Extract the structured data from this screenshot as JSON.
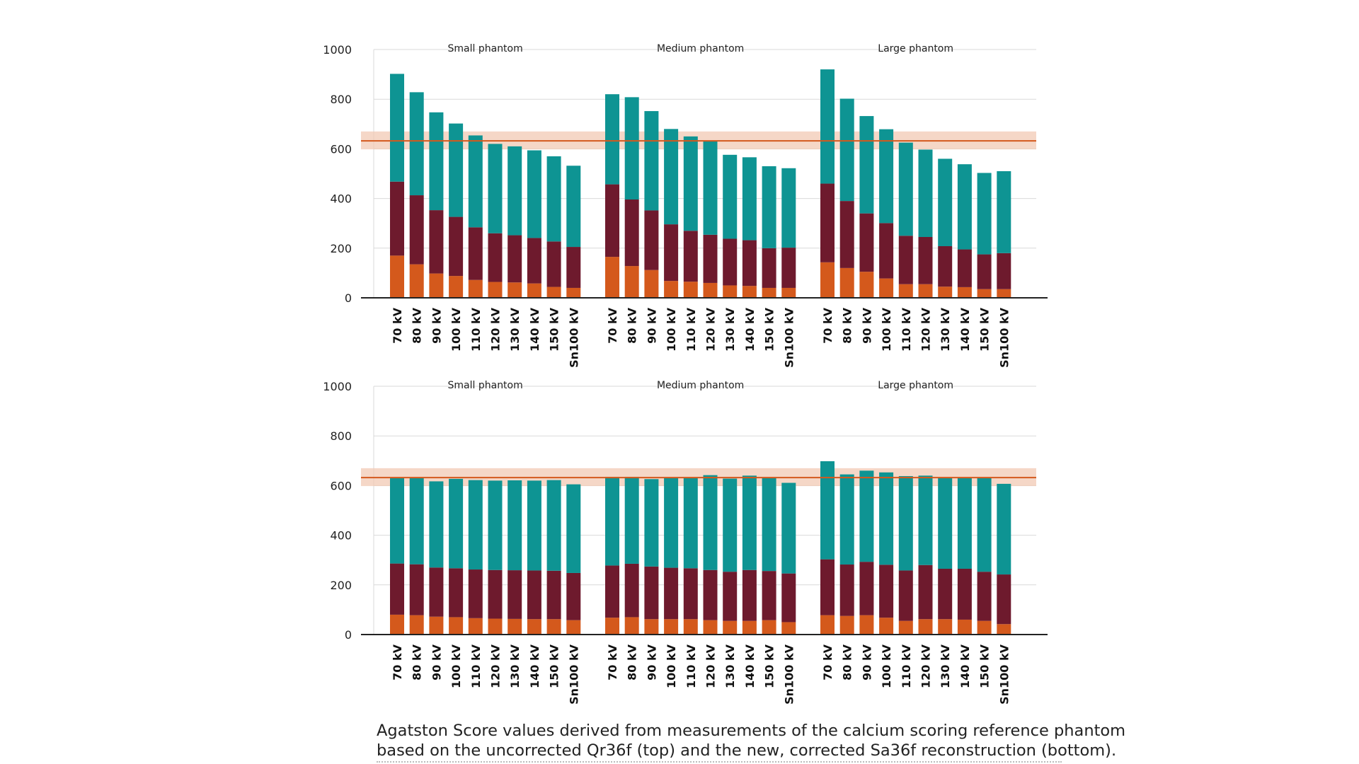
{
  "colors": {
    "bottom": "#d4591c",
    "middle": "#6e1a2d",
    "top": "#0e9493",
    "reference_line": "#d4591c",
    "reference_band": "#f1c9b4",
    "axis": "#222222",
    "grid": "#d9d9d9"
  },
  "caption": {
    "line1": "Agatston Score values derived from measurements of the calcium scoring reference phantom",
    "line2": "based on the uncorrected Qr36f (top) and the new, corrected Sa36f reconstruction (bottom)."
  },
  "chart_data": [
    {
      "type": "bar",
      "stacked": true,
      "title": "Uncorrected Qr36f",
      "reference": {
        "value": 632,
        "band": [
          598,
          670
        ]
      },
      "ylim": [
        0,
        1000
      ],
      "yticks": [
        0,
        200,
        400,
        600,
        800,
        1000
      ],
      "groups": [
        {
          "label": "Small phantom",
          "categories": [
            "70 kV",
            "80 kV",
            "90 kV",
            "100 kV",
            "110 kV",
            "120 kV",
            "130 kV",
            "140 kV",
            "150 kV",
            "Sn100 kV"
          ],
          "series": [
            {
              "name": "bottom",
              "values": [
                170,
                135,
                98,
                88,
                72,
                64,
                62,
                58,
                44,
                40
              ]
            },
            {
              "name": "middle",
              "values": [
                298,
                278,
                255,
                238,
                212,
                196,
                190,
                183,
                183,
                165
              ]
            },
            {
              "name": "top",
              "values": [
                434,
                415,
                394,
                376,
                370,
                360,
                358,
                353,
                343,
                327
              ]
            }
          ]
        },
        {
          "label": "Medium phantom",
          "categories": [
            "70 kV",
            "80 kV",
            "90 kV",
            "100 kV",
            "110 kV",
            "120 kV",
            "130 kV",
            "140 kV",
            "150 kV",
            "Sn100 kV"
          ],
          "series": [
            {
              "name": "bottom",
              "values": [
                165,
                128,
                112,
                68,
                65,
                60,
                50,
                48,
                40,
                40
              ]
            },
            {
              "name": "middle",
              "values": [
                292,
                268,
                240,
                228,
                205,
                194,
                188,
                184,
                160,
                162
              ]
            },
            {
              "name": "top",
              "values": [
                363,
                412,
                400,
                384,
                380,
                376,
                338,
                334,
                330,
                320
              ]
            }
          ]
        },
        {
          "label": "Large phantom",
          "categories": [
            "70 kV",
            "80 kV",
            "90 kV",
            "100 kV",
            "110 kV",
            "120 kV",
            "130 kV",
            "140 kV",
            "150 kV",
            "Sn100 kV"
          ],
          "series": [
            {
              "name": "bottom",
              "values": [
                143,
                120,
                105,
                78,
                55,
                55,
                45,
                43,
                35,
                35
              ]
            },
            {
              "name": "middle",
              "values": [
                317,
                270,
                235,
                223,
                195,
                190,
                163,
                152,
                140,
                145
              ]
            },
            {
              "name": "top",
              "values": [
                460,
                412,
                392,
                378,
                375,
                352,
                352,
                343,
                328,
                330
              ]
            }
          ]
        }
      ]
    },
    {
      "type": "bar",
      "stacked": true,
      "title": "Corrected Sa36f",
      "reference": {
        "value": 632,
        "band": [
          598,
          670
        ]
      },
      "ylim": [
        0,
        1000
      ],
      "yticks": [
        0,
        200,
        400,
        600,
        800,
        1000
      ],
      "groups": [
        {
          "label": "Small phantom",
          "categories": [
            "70 kV",
            "80 kV",
            "90 kV",
            "100 kV",
            "110 kV",
            "120 kV",
            "130 kV",
            "140 kV",
            "150 kV",
            "Sn100 kV"
          ],
          "series": [
            {
              "name": "bottom",
              "values": [
                80,
                78,
                72,
                70,
                66,
                64,
                63,
                62,
                62,
                58
              ]
            },
            {
              "name": "middle",
              "values": [
                206,
                205,
                198,
                197,
                196,
                196,
                196,
                196,
                195,
                190
              ]
            },
            {
              "name": "top",
              "values": [
                346,
                347,
                347,
                360,
                360,
                360,
                362,
                362,
                365,
                357
              ]
            }
          ]
        },
        {
          "label": "Medium phantom",
          "categories": [
            "70 kV",
            "80 kV",
            "90 kV",
            "100 kV",
            "110 kV",
            "120 kV",
            "130 kV",
            "140 kV",
            "150 kV",
            "Sn100 kV"
          ],
          "series": [
            {
              "name": "bottom",
              "values": [
                68,
                70,
                62,
                62,
                62,
                58,
                55,
                55,
                58,
                50
              ]
            },
            {
              "name": "middle",
              "values": [
                210,
                215,
                212,
                207,
                205,
                202,
                198,
                205,
                198,
                196
              ]
            },
            {
              "name": "top",
              "values": [
                357,
                350,
                352,
                364,
                366,
                382,
                375,
                380,
                376,
                365
              ]
            }
          ]
        },
        {
          "label": "Large phantom",
          "categories": [
            "70 kV",
            "80 kV",
            "90 kV",
            "100 kV",
            "110 kV",
            "120 kV",
            "130 kV",
            "140 kV",
            "150 kV",
            "Sn100 kV"
          ],
          "series": [
            {
              "name": "bottom",
              "values": [
                78,
                75,
                78,
                68,
                55,
                62,
                62,
                60,
                55,
                42
              ]
            },
            {
              "name": "middle",
              "values": [
                225,
                207,
                215,
                213,
                203,
                218,
                203,
                205,
                198,
                200
              ]
            },
            {
              "name": "top",
              "values": [
                395,
                363,
                367,
                372,
                380,
                360,
                367,
                365,
                380,
                365
              ]
            }
          ]
        }
      ]
    }
  ]
}
